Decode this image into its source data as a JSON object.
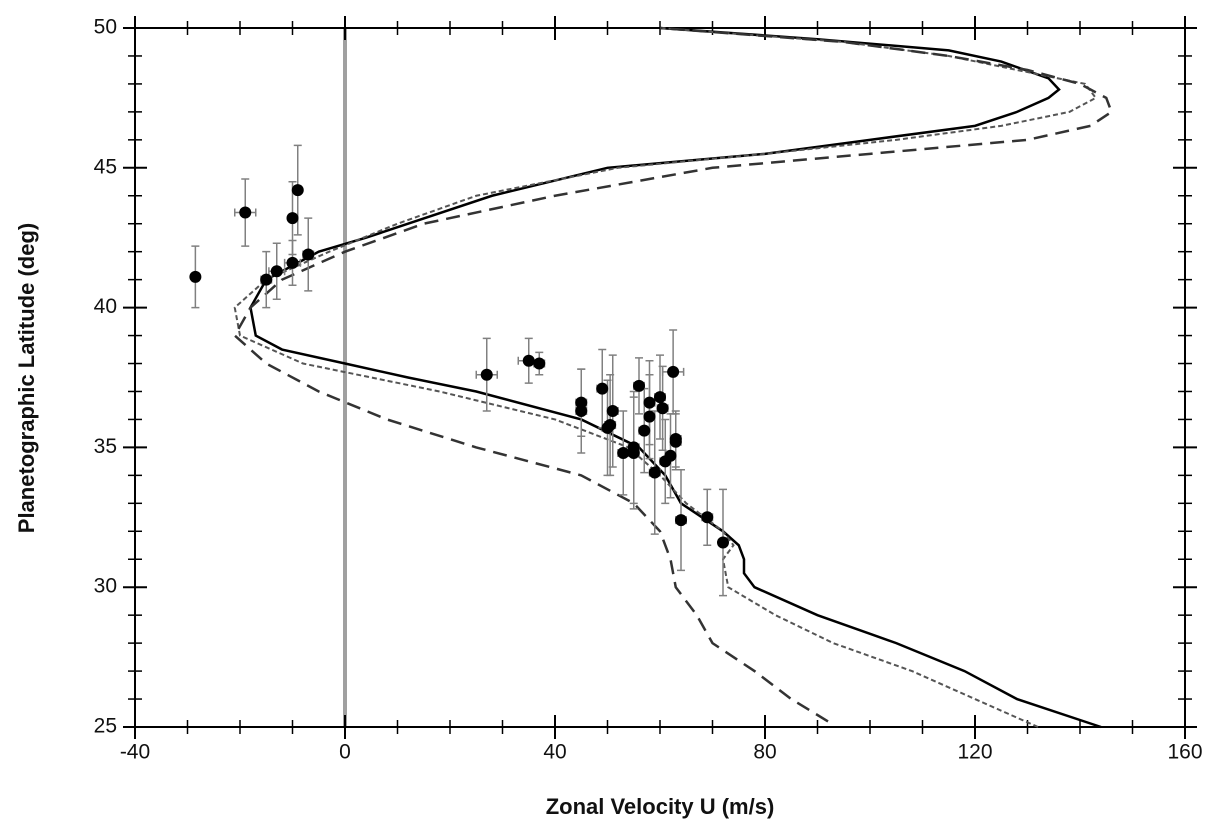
{
  "chart_data": {
    "type": "profile",
    "xlabel": "Zonal Velocity U (m/s)",
    "ylabel": "Planetographic Latitude (deg)",
    "xlim": [
      -40,
      160
    ],
    "xticks": [
      -40,
      0,
      40,
      80,
      120,
      160
    ],
    "xminorticks": [
      -30,
      -20,
      -10,
      10,
      20,
      30,
      50,
      60,
      70,
      90,
      100,
      110,
      130,
      140,
      150
    ],
    "ylim": [
      25,
      50
    ],
    "yticks": [
      25,
      30,
      35,
      40,
      45,
      50
    ],
    "yminorticks": [
      26,
      27,
      28,
      29,
      31,
      32,
      33,
      34,
      36,
      37,
      38,
      39,
      41,
      42,
      43,
      44,
      46,
      47,
      48,
      49
    ],
    "reference_line_x": 0,
    "reference_color": "#a0a0a0",
    "series": [
      {
        "type": "line",
        "dash": "solid",
        "color": "#000000",
        "x": [
          144,
          128,
          118,
          105,
          90,
          78,
          76,
          76,
          75,
          72,
          68,
          64,
          61,
          56,
          45,
          25,
          12,
          0,
          -12,
          -17,
          -18,
          -15,
          -5,
          4,
          12,
          28,
          50,
          80,
          100,
          120,
          128,
          134,
          136,
          134,
          125,
          115,
          90,
          60
        ],
        "y": [
          25,
          26,
          27,
          28,
          29,
          30,
          30.5,
          31,
          31.5,
          32,
          32.5,
          33,
          34,
          35,
          36,
          37,
          37.5,
          38,
          38.5,
          39,
          40,
          41,
          42,
          42.5,
          43,
          44,
          45,
          45.5,
          46,
          46.5,
          47,
          47.5,
          47.8,
          48.2,
          48.8,
          49.2,
          49.6,
          50
        ]
      },
      {
        "type": "line",
        "dash": "dotted",
        "color": "#555555",
        "x": [
          132,
          120,
          108,
          93,
          82,
          73,
          72,
          74,
          72,
          65,
          60,
          54,
          40,
          18,
          5,
          -8,
          -20,
          -21,
          -15,
          -3,
          10,
          25,
          52,
          80,
          105,
          125,
          138,
          143,
          141,
          128,
          115,
          95,
          60
        ],
        "y": [
          25,
          26,
          27,
          28,
          29,
          30,
          31,
          31.5,
          32,
          33,
          34,
          35,
          36,
          37,
          37.5,
          38,
          39,
          40,
          41,
          42,
          43,
          44,
          45,
          45.5,
          46,
          46.5,
          47,
          47.5,
          48,
          48.5,
          49,
          49.5,
          50
        ]
      },
      {
        "type": "line",
        "dash": "dashed",
        "color": "#333333",
        "x": [
          92,
          85,
          78,
          70,
          67,
          63,
          62,
          60,
          55,
          45,
          25,
          8,
          -5,
          -15,
          -21,
          -18,
          -12,
          0,
          15,
          40,
          70,
          100,
          130,
          142,
          146,
          145,
          140,
          130,
          115,
          95,
          60
        ],
        "y": [
          25.2,
          26,
          27,
          28,
          29,
          30,
          31,
          32,
          33,
          34,
          35,
          36,
          37,
          38,
          39,
          40,
          41,
          42,
          43,
          44,
          45,
          45.5,
          46,
          46.5,
          47,
          47.5,
          48,
          48.5,
          49,
          49.5,
          50
        ]
      },
      {
        "type": "scatter",
        "color": "#000000",
        "errcolor": "#808080",
        "x": [
          -28.5,
          -19,
          -9,
          -10,
          -7,
          -10,
          -13,
          -15,
          27,
          35,
          37,
          45,
          45,
          49,
          50,
          51,
          50.5,
          53,
          55,
          55,
          56,
          57,
          58,
          58,
          59,
          60,
          60.5,
          61,
          62,
          62.5,
          63,
          63,
          64,
          69,
          72
        ],
        "y": [
          41.1,
          43.4,
          44.2,
          43.2,
          41.9,
          41.6,
          41.3,
          41.0,
          37.6,
          38.1,
          38.0,
          36.6,
          36.3,
          37.1,
          35.7,
          36.3,
          35.8,
          34.8,
          34.8,
          35.0,
          37.2,
          35.6,
          36.1,
          36.6,
          34.1,
          36.8,
          36.4,
          34.5,
          34.7,
          37.7,
          35.3,
          35.2,
          32.4,
          32.5,
          31.6
        ],
        "xerr": [
          0,
          2,
          0,
          0,
          1,
          1.5,
          1.5,
          1,
          2,
          2,
          1,
          1,
          1,
          1,
          1,
          1,
          1,
          1,
          1,
          1,
          1,
          1,
          1,
          1,
          1,
          1,
          1,
          1,
          1,
          2,
          1,
          1,
          1,
          1,
          0
        ],
        "yerr": [
          1.1,
          1.2,
          1.6,
          1.3,
          1.3,
          0.8,
          1.0,
          1.0,
          1.3,
          0.8,
          0.4,
          1.2,
          1.5,
          1.4,
          1.7,
          2.0,
          1.8,
          1.5,
          2,
          2,
          1,
          1.5,
          1.5,
          1.5,
          2.2,
          1.5,
          1.5,
          1.5,
          1.5,
          1.5,
          1,
          1,
          1.8,
          1,
          1.9
        ]
      }
    ]
  }
}
